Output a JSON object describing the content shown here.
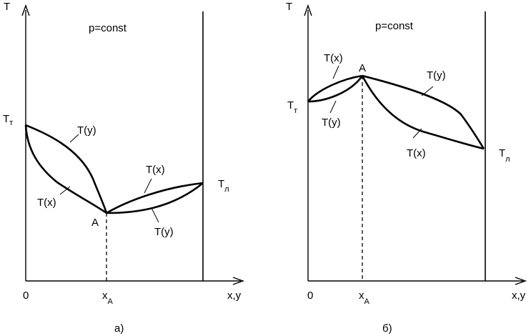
{
  "panels": [
    {
      "caption": "а)",
      "axis_y_label": "T",
      "axis_x_label": "x,y",
      "origin_label": "0",
      "condition": "p=const",
      "azeotrope_label": "A",
      "xa_label": "x",
      "xa_sub": "A",
      "t_solid": {
        "main": "T",
        "sub": "т"
      },
      "t_liquid": {
        "main": "T",
        "sub": "л"
      },
      "curve_labels": [
        "T(y)",
        "T(x)",
        "T(x)",
        "T(y)"
      ]
    },
    {
      "caption": "б)",
      "axis_y_label": "T",
      "axis_x_label": "x,y",
      "origin_label": "0",
      "condition": "p=const",
      "azeotrope_label": "A",
      "xa_label": "x",
      "xa_sub": "A",
      "t_solid": {
        "main": "T",
        "sub": "т"
      },
      "t_liquid": {
        "main": "T",
        "sub": "л"
      },
      "curve_labels": [
        "T(x)",
        "T(y)",
        "T(y)",
        "T(x)"
      ]
    }
  ]
}
